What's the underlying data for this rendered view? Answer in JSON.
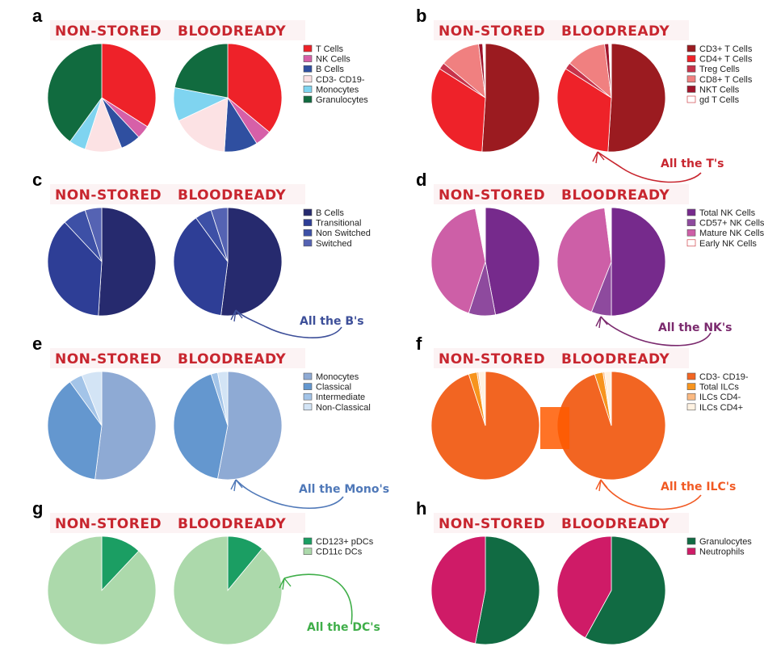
{
  "figure_name": "pie-chart-grid",
  "headers": {
    "left": "NON-STORED",
    "right": "BLOODREADY"
  },
  "chart_data": [
    {
      "panel": "a",
      "type": "pie",
      "title_left": "NON-STORED",
      "title_right": "BLOODREADY",
      "categories": [
        "T Cells",
        "NK Cells",
        "B Cells",
        "CD3- CD19-",
        "Monocytes",
        "Granulocytes"
      ],
      "colors": [
        "#ee2229",
        "#d660a8",
        "#2f4fa0",
        "#fce2e4",
        "#7fd4f0",
        "#116b3f"
      ],
      "series": [
        {
          "name": "NON-STORED",
          "values": [
            34,
            4,
            6,
            11,
            5,
            40
          ]
        },
        {
          "name": "BLOODREADY",
          "values": [
            36,
            5,
            10,
            17,
            10,
            22
          ]
        }
      ],
      "annotation": ""
    },
    {
      "panel": "b",
      "type": "pie",
      "title_left": "NON-STORED",
      "title_right": "BLOODREADY",
      "categories": [
        "CD3+ T Cells",
        "CD4+ T Cells",
        "Treg Cells",
        "CD8+ T Cells",
        "NKT Cells",
        "gd T Cells"
      ],
      "colors": [
        "#9b1b20",
        "#ee2229",
        "#c7334a",
        "#f08080",
        "#a0142b",
        "#ffffff"
      ],
      "series": [
        {
          "name": "NON-STORED",
          "values": [
            51,
            33,
            2,
            12,
            1.2,
            0.8
          ]
        },
        {
          "name": "BLOODREADY",
          "values": [
            51,
            33,
            2,
            12,
            1.2,
            0.8
          ]
        }
      ],
      "annotation": "All the T's",
      "annotation_color": "#c8262f"
    },
    {
      "panel": "c",
      "type": "pie",
      "title_left": "NON-STORED",
      "title_right": "BLOODREADY",
      "categories": [
        "B Cells",
        "Transitional",
        "Non Switched",
        "Switched"
      ],
      "colors": [
        "#262a6e",
        "#2e3e96",
        "#3d50a6",
        "#5563b3"
      ],
      "series": [
        {
          "name": "NON-STORED",
          "values": [
            51,
            37,
            7,
            5
          ]
        },
        {
          "name": "BLOODREADY",
          "values": [
            52,
            38,
            5,
            5
          ]
        }
      ],
      "annotation": "All the B's",
      "annotation_color": "#3d4f99"
    },
    {
      "panel": "d",
      "type": "pie",
      "title_left": "NON-STORED",
      "title_right": "BLOODREADY",
      "categories": [
        "Total NK Cells",
        "CD57+ NK Cells",
        "Mature NK Cells",
        "Early NK Cells"
      ],
      "colors": [
        "#762a8c",
        "#8e4a9e",
        "#cd5fa7",
        "#ffffff"
      ],
      "series": [
        {
          "name": "NON-STORED",
          "values": [
            47,
            8,
            42,
            3
          ]
        },
        {
          "name": "BLOODREADY",
          "values": [
            50,
            6,
            42,
            2
          ]
        }
      ],
      "annotation": "All the NK's",
      "annotation_color": "#7b2a6e"
    },
    {
      "panel": "e",
      "type": "pie",
      "title_left": "NON-STORED",
      "title_right": "BLOODREADY",
      "categories": [
        "Monocytes",
        "Classical",
        "Intermediate",
        "Non-Classical"
      ],
      "colors": [
        "#8eaad4",
        "#6497cf",
        "#a3c4e8",
        "#d3e4f5"
      ],
      "series": [
        {
          "name": "NON-STORED",
          "values": [
            52,
            38,
            4,
            6
          ]
        },
        {
          "name": "BLOODREADY",
          "values": [
            53,
            42,
            2,
            3
          ]
        }
      ],
      "annotation": "All the Mono's",
      "annotation_color": "#4f78b8"
    },
    {
      "panel": "f",
      "type": "pie",
      "title_left": "NON-STORED",
      "title_right": "BLOODREADY",
      "categories": [
        "CD3- CD19-",
        "Total ILCs",
        "ILCs CD4-",
        "ILCs CD4+"
      ],
      "colors": [
        "#f26522",
        "#f7941d",
        "#fbb981",
        "#fff2e2"
      ],
      "series": [
        {
          "name": "NON-STORED",
          "values": [
            95,
            2.5,
            0.5,
            2
          ]
        },
        {
          "name": "BLOODREADY",
          "values": [
            95,
            2.5,
            0.5,
            2
          ]
        }
      ],
      "annotation": "All the ILC's",
      "annotation_color": "#f15a24"
    },
    {
      "panel": "g",
      "type": "pie",
      "title_left": "NON-STORED",
      "title_right": "BLOODREADY",
      "categories": [
        "CD123+ pDCs",
        "CD11c DCs"
      ],
      "colors": [
        "#1b9e63",
        "#acd9ab"
      ],
      "series": [
        {
          "name": "NON-STORED",
          "values": [
            12,
            88
          ]
        },
        {
          "name": "BLOODREADY",
          "values": [
            11,
            89
          ]
        }
      ],
      "annotation": "All the DC's",
      "annotation_color": "#3fae49"
    },
    {
      "panel": "h",
      "type": "pie",
      "title_left": "NON-STORED",
      "title_right": "BLOODREADY",
      "categories": [
        "Granulocytes",
        "Neutrophils"
      ],
      "colors": [
        "#116b43",
        "#cf1b67"
      ],
      "series": [
        {
          "name": "NON-STORED",
          "values": [
            53,
            47
          ]
        },
        {
          "name": "BLOODREADY",
          "values": [
            58,
            42
          ]
        }
      ],
      "annotation": ""
    }
  ]
}
